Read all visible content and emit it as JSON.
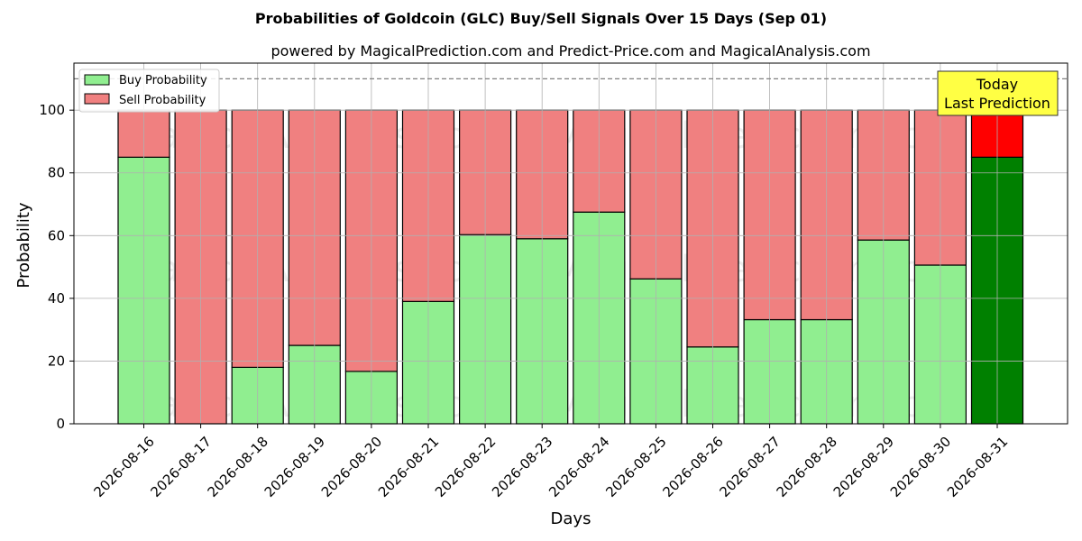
{
  "chart_data": {
    "type": "bar",
    "stacked": true,
    "title": "Probabilities of Goldcoin (GLC) Buy/Sell Signals Over 15 Days (Sep 01)",
    "subtitle": "powered by MagicalPrediction.com and Predict-Price.com and MagicalAnalysis.com",
    "xlabel": "Days",
    "ylabel": "Probability",
    "ylim": [
      0,
      115
    ],
    "yticks": [
      0,
      20,
      40,
      60,
      80,
      100
    ],
    "grid": true,
    "legend_position": "top-left",
    "reference_line": 110,
    "categories": [
      "2026-08-16",
      "2026-08-17",
      "2026-08-18",
      "2026-08-19",
      "2026-08-20",
      "2026-08-21",
      "2026-08-22",
      "2026-08-23",
      "2026-08-24",
      "2026-08-25",
      "2026-08-26",
      "2026-08-27",
      "2026-08-28",
      "2026-08-29",
      "2026-08-30",
      "2026-08-31"
    ],
    "series": [
      {
        "name": "Buy Probability",
        "color": "#90ee90",
        "highlight_color": "#008000",
        "values": [
          85,
          0,
          18,
          25,
          16.7,
          39,
          60.3,
          59,
          67.5,
          46.2,
          24.5,
          33.2,
          33.2,
          58.6,
          50.6,
          85
        ]
      },
      {
        "name": "Sell Probability",
        "color": "#f08080",
        "highlight_color": "#ff0000",
        "values": [
          15,
          100,
          82,
          75,
          83.3,
          61,
          39.7,
          41,
          32.5,
          53.8,
          75.5,
          66.8,
          66.8,
          41.4,
          49.4,
          15
        ]
      }
    ],
    "highlight_index": 15,
    "annotation": {
      "line1": "Today",
      "line2": "Last Prediction",
      "color": "#ffff44"
    },
    "watermarks": [
      "MagicalAnalysis.com",
      "MagicalPrediction.com"
    ]
  }
}
